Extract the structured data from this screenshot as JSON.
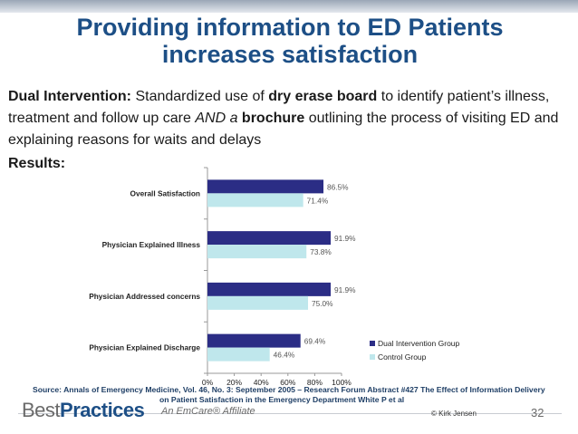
{
  "slide": {
    "title_line1": "Providing information to ED Patients",
    "title_line2": "increases satisfaction",
    "intro": {
      "lead": "Dual Intervention:",
      "t1": " Standardized use of ",
      "b1": "dry erase board",
      "t2": " to identify patient’s illness, treatment and follow up care ",
      "i1": "AND a",
      "t3": " ",
      "b2": "brochure",
      "t4": " outlining the process of visiting ED and explaining reasons for waits and delays"
    },
    "results_label": "Results:",
    "source_line1": "Source:  Annals of Emergency Medicine, Vol. 46, No. 3: September 2005 – Research Forum Abstract #427 The Effect of Information Delivery",
    "source_line2": "on Patient Satisfaction in the Emergency Department White P et al",
    "footer": {
      "logo_light": "Best",
      "logo_bold": "Practices",
      "affiliate": "An EmCare® Affiliate",
      "copyright": "© Kirk Jensen",
      "slide_number": "32"
    }
  },
  "colors": {
    "title": "#1d4f86",
    "dual": "#2b2d85",
    "control": "#bfe7ec",
    "axis": "#999999",
    "label": "#222222",
    "value_label": "#555555"
  },
  "chart_data": {
    "type": "bar",
    "orientation": "horizontal",
    "categories": [
      "Overall Satisfaction",
      "Physician Explained Illness",
      "Physician Addressed concerns",
      "Physician Explained Discharge"
    ],
    "series": [
      {
        "name": "Dual Intervention Group",
        "values": [
          86.5,
          91.9,
          91.9,
          69.4
        ],
        "labels": [
          "86.5%",
          "91.9%",
          "91.9%",
          "69.4%"
        ]
      },
      {
        "name": "Control Group",
        "values": [
          71.4,
          73.8,
          75.0,
          46.4
        ],
        "labels": [
          "71.4%",
          "73.8%",
          "75.0%",
          "46.4%"
        ]
      }
    ],
    "xlim": [
      0,
      100
    ],
    "xticks": [
      0,
      20,
      40,
      60,
      80,
      100
    ],
    "xtick_labels": [
      "0%",
      "20%",
      "40%",
      "60%",
      "80%",
      "100%"
    ],
    "legend_position": "bottom-right",
    "title": "",
    "xlabel": "",
    "ylabel": ""
  }
}
